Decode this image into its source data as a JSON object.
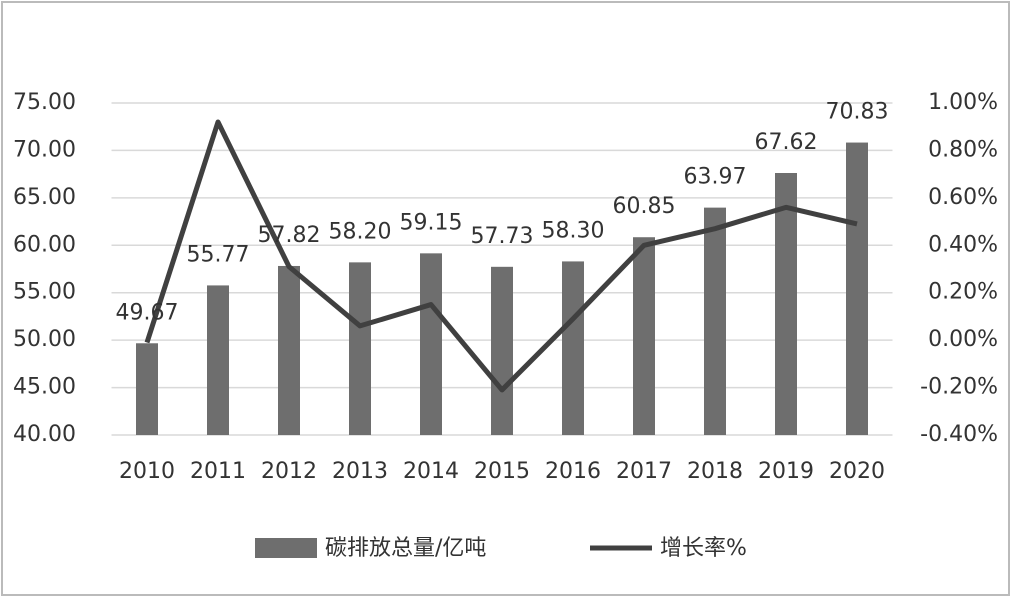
{
  "chart_data": {
    "type": "combo",
    "categories": [
      "2010",
      "2011",
      "2012",
      "2013",
      "2014",
      "2015",
      "2016",
      "2017",
      "2018",
      "2019",
      "2020"
    ],
    "series": [
      {
        "name": "碳排放总量/亿吨",
        "type": "bar",
        "axis": "y",
        "color": "#6e6e6e",
        "values": [
          49.67,
          55.77,
          57.82,
          58.2,
          59.15,
          57.73,
          58.3,
          60.85,
          63.97,
          67.62,
          70.83
        ],
        "value_labels": [
          "49.67",
          "55.77",
          "57.82",
          "58.20",
          "59.15",
          "57.73",
          "58.30",
          "60.85",
          "63.97",
          "67.62",
          "70.83"
        ]
      },
      {
        "name": "增长率%",
        "type": "line",
        "axis": "y2",
        "color": "#404040",
        "values": [
          -0.01,
          0.92,
          0.31,
          0.06,
          0.15,
          -0.21,
          0.09,
          0.4,
          0.47,
          0.56,
          0.49
        ]
      }
    ],
    "ylim": [
      40,
      75
    ],
    "yticks": [
      {
        "value": 40,
        "label": "40.00"
      },
      {
        "value": 45,
        "label": "45.00"
      },
      {
        "value": 50,
        "label": "50.00"
      },
      {
        "value": 55,
        "label": "55.00"
      },
      {
        "value": 60,
        "label": "60.00"
      },
      {
        "value": 65,
        "label": "65.00"
      },
      {
        "value": 70,
        "label": "70.00"
      },
      {
        "value": 75,
        "label": "75.00"
      }
    ],
    "y2lim": [
      -0.4,
      1.0
    ],
    "y2ticks": [
      {
        "value": -0.4,
        "label": "-0.40%"
      },
      {
        "value": -0.2,
        "label": "-0.20%"
      },
      {
        "value": 0,
        "label": "0.00%"
      },
      {
        "value": 0.2,
        "label": "0.20%"
      },
      {
        "value": 0.4,
        "label": "0.40%"
      },
      {
        "value": 0.6,
        "label": "0.60%"
      },
      {
        "value": 0.8,
        "label": "0.80%"
      },
      {
        "value": 1.0,
        "label": "1.00%"
      }
    ],
    "grid": true,
    "legend": "bottom"
  }
}
